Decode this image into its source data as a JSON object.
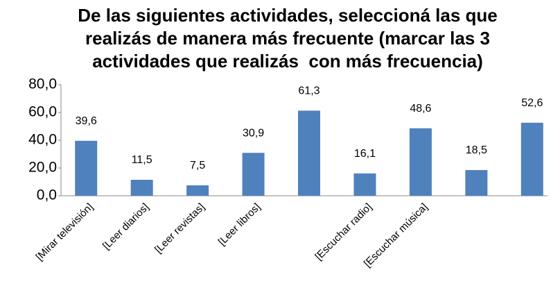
{
  "chart_data": {
    "type": "bar",
    "title": "De las siguientes actividades, seleccioná las que realizás de manera más frecuente (marcar las 3 actividades que realizás  con más frecuencia)",
    "categories": [
      "[Mirar televisión]",
      "[Leer diarios]",
      "[Leer revistas]",
      "[Leer libros]",
      null,
      "[Escuchar radio]",
      "[Escuchar música]",
      null,
      null
    ],
    "values": [
      39.6,
      11.5,
      7.5,
      30.9,
      61.3,
      16.1,
      48.6,
      18.5,
      52.6
    ],
    "value_labels": [
      "39,6",
      "11,5",
      "7,5",
      "30,9",
      "61,3",
      "16,1",
      "48,6",
      "18,5",
      "52,6"
    ],
    "color": "#4f81bd",
    "ylim": [
      0,
      80
    ],
    "yticks": [
      {
        "value": 0,
        "label": "0,0"
      },
      {
        "value": 20,
        "label": "20,0"
      },
      {
        "value": 40,
        "label": "40,0"
      },
      {
        "value": 60,
        "label": "60,0"
      },
      {
        "value": 80,
        "label": "80,0"
      }
    ],
    "grid": false
  }
}
